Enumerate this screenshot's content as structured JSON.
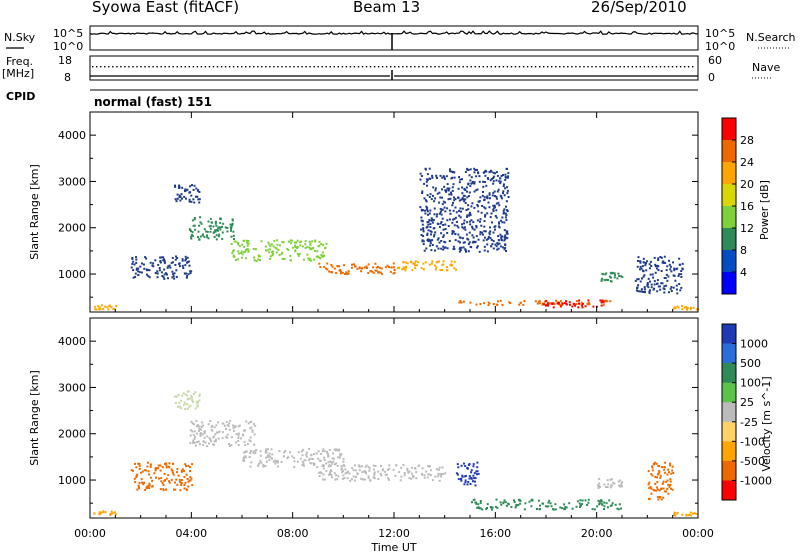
{
  "header": {
    "station": "Syowa East (fitACF)",
    "beam": "Beam 13",
    "date": "26/Sep/2010"
  },
  "status": {
    "nsky_label": "N.Sky",
    "nsearch_label": "N.Search",
    "freq_label_1": "Freq.",
    "freq_label_2": "[MHz]",
    "nave_label": "Nave",
    "cpid_label": "CPID",
    "cpid_value": "normal (fast) 151",
    "noise_ticks": [
      "10^5",
      "10^0"
    ],
    "noise_right_ticks": [
      "10^5",
      "10^0"
    ],
    "freq_ticks": [
      "18",
      "8"
    ],
    "nave_ticks": [
      "60",
      "0"
    ]
  },
  "chart_data": [
    {
      "type": "heatmap",
      "name": "power",
      "ylabel": "Slant Range [km]",
      "colorbar_label": "Power [dB]",
      "colorbar_ticks": [
        "28",
        "24",
        "20",
        "16",
        "12",
        "8",
        "4"
      ],
      "colorbar_colors": [
        "#ff0000",
        "#ee6a00",
        "#ffa500",
        "#d8d800",
        "#7fd13b",
        "#2e8b57",
        "#004cc2",
        "#0000ff"
      ],
      "ylim": [
        180,
        4500
      ],
      "yticks": [
        "4000",
        "3000",
        "2000",
        "1000"
      ],
      "scatter_bands": [
        {
          "t": [
            1.6,
            4.0
          ],
          "r": [
            900,
            1400
          ],
          "color": "#1e3a8a"
        },
        {
          "t": [
            3.3,
            4.3
          ],
          "r": [
            2550,
            2950
          ],
          "color": "#1e3a8a"
        },
        {
          "t": [
            3.9,
            5.7
          ],
          "r": [
            1750,
            2250
          ],
          "color": "#2e8b57"
        },
        {
          "t": [
            5.5,
            9.3
          ],
          "r": [
            1300,
            1750
          ],
          "color": "#7fd13b"
        },
        {
          "t": [
            9.0,
            12.0
          ],
          "r": [
            1000,
            1250
          ],
          "color": "#ee6a00"
        },
        {
          "t": [
            12.0,
            14.5
          ],
          "r": [
            1100,
            1300
          ],
          "color": "#ffa500"
        },
        {
          "t": [
            13.0,
            16.5
          ],
          "r": [
            1500,
            3300
          ],
          "color": "#1e3a8a"
        },
        {
          "t": [
            14.5,
            20.5
          ],
          "r": [
            350,
            450
          ],
          "color": "#ee6a00"
        },
        {
          "t": [
            17.8,
            20.3
          ],
          "r": [
            300,
            450
          ],
          "color": "#ff0000"
        },
        {
          "t": [
            20.0,
            21.0
          ],
          "r": [
            850,
            1050
          ],
          "color": "#2e8b57"
        },
        {
          "t": [
            21.5,
            23.4
          ],
          "r": [
            600,
            1400
          ],
          "color": "#1e3a8a"
        },
        {
          "t": [
            0.1,
            1.0
          ],
          "r": [
            250,
            350
          ],
          "color": "#ffa500"
        },
        {
          "t": [
            23.0,
            24.0
          ],
          "r": [
            250,
            330
          ],
          "color": "#ffa500"
        }
      ]
    },
    {
      "type": "heatmap",
      "name": "velocity",
      "ylabel": "Slant Range [km]",
      "colorbar_label": "Velocity [m s^-1]",
      "colorbar_ticks": [
        "1000",
        "500",
        "100",
        "25",
        "-25",
        "-100",
        "-500",
        "-1000"
      ],
      "colorbar_colors": [
        "#1e3ab5",
        "#2a6eda",
        "#2e8b57",
        "#5cc24a",
        "#bbbbbb",
        "#ffd166",
        "#ffa500",
        "#ee6a00",
        "#ff0000"
      ],
      "ylim": [
        180,
        4500
      ],
      "yticks": [
        "4000",
        "3000",
        "2000",
        "1000"
      ],
      "scatter_bands": [
        {
          "t": [
            1.6,
            4.0
          ],
          "r": [
            800,
            1400
          ],
          "color": "#ee6a00"
        },
        {
          "t": [
            3.3,
            4.3
          ],
          "r": [
            2550,
            2950
          ],
          "color": "#c8d8a8"
        },
        {
          "t": [
            3.9,
            6.5
          ],
          "r": [
            1750,
            2300
          ],
          "color": "#bbbbbb"
        },
        {
          "t": [
            6.0,
            10.0
          ],
          "r": [
            1300,
            1700
          ],
          "color": "#bbbbbb"
        },
        {
          "t": [
            9.0,
            14.0
          ],
          "r": [
            1000,
            1350
          ],
          "color": "#bbbbbb"
        },
        {
          "t": [
            14.4,
            15.3
          ],
          "r": [
            900,
            1400
          ],
          "color": "#1e3ab5"
        },
        {
          "t": [
            15.0,
            21.0
          ],
          "r": [
            380,
            600
          ],
          "color": "#2e8b57"
        },
        {
          "t": [
            20.0,
            21.0
          ],
          "r": [
            850,
            1050
          ],
          "color": "#bbbbbb"
        },
        {
          "t": [
            22.0,
            23.0
          ],
          "r": [
            600,
            1400
          ],
          "color": "#ee6a00"
        },
        {
          "t": [
            0.1,
            1.0
          ],
          "r": [
            250,
            350
          ],
          "color": "#ffa500"
        },
        {
          "t": [
            23.0,
            24.0
          ],
          "r": [
            250,
            330
          ],
          "color": "#ffa500"
        }
      ]
    }
  ],
  "time_axis": {
    "xlabel": "Time UT",
    "xlim": [
      0,
      24
    ],
    "ticks": [
      "00:00",
      "04:00",
      "08:00",
      "12:00",
      "16:00",
      "20:00",
      "00:00"
    ]
  }
}
